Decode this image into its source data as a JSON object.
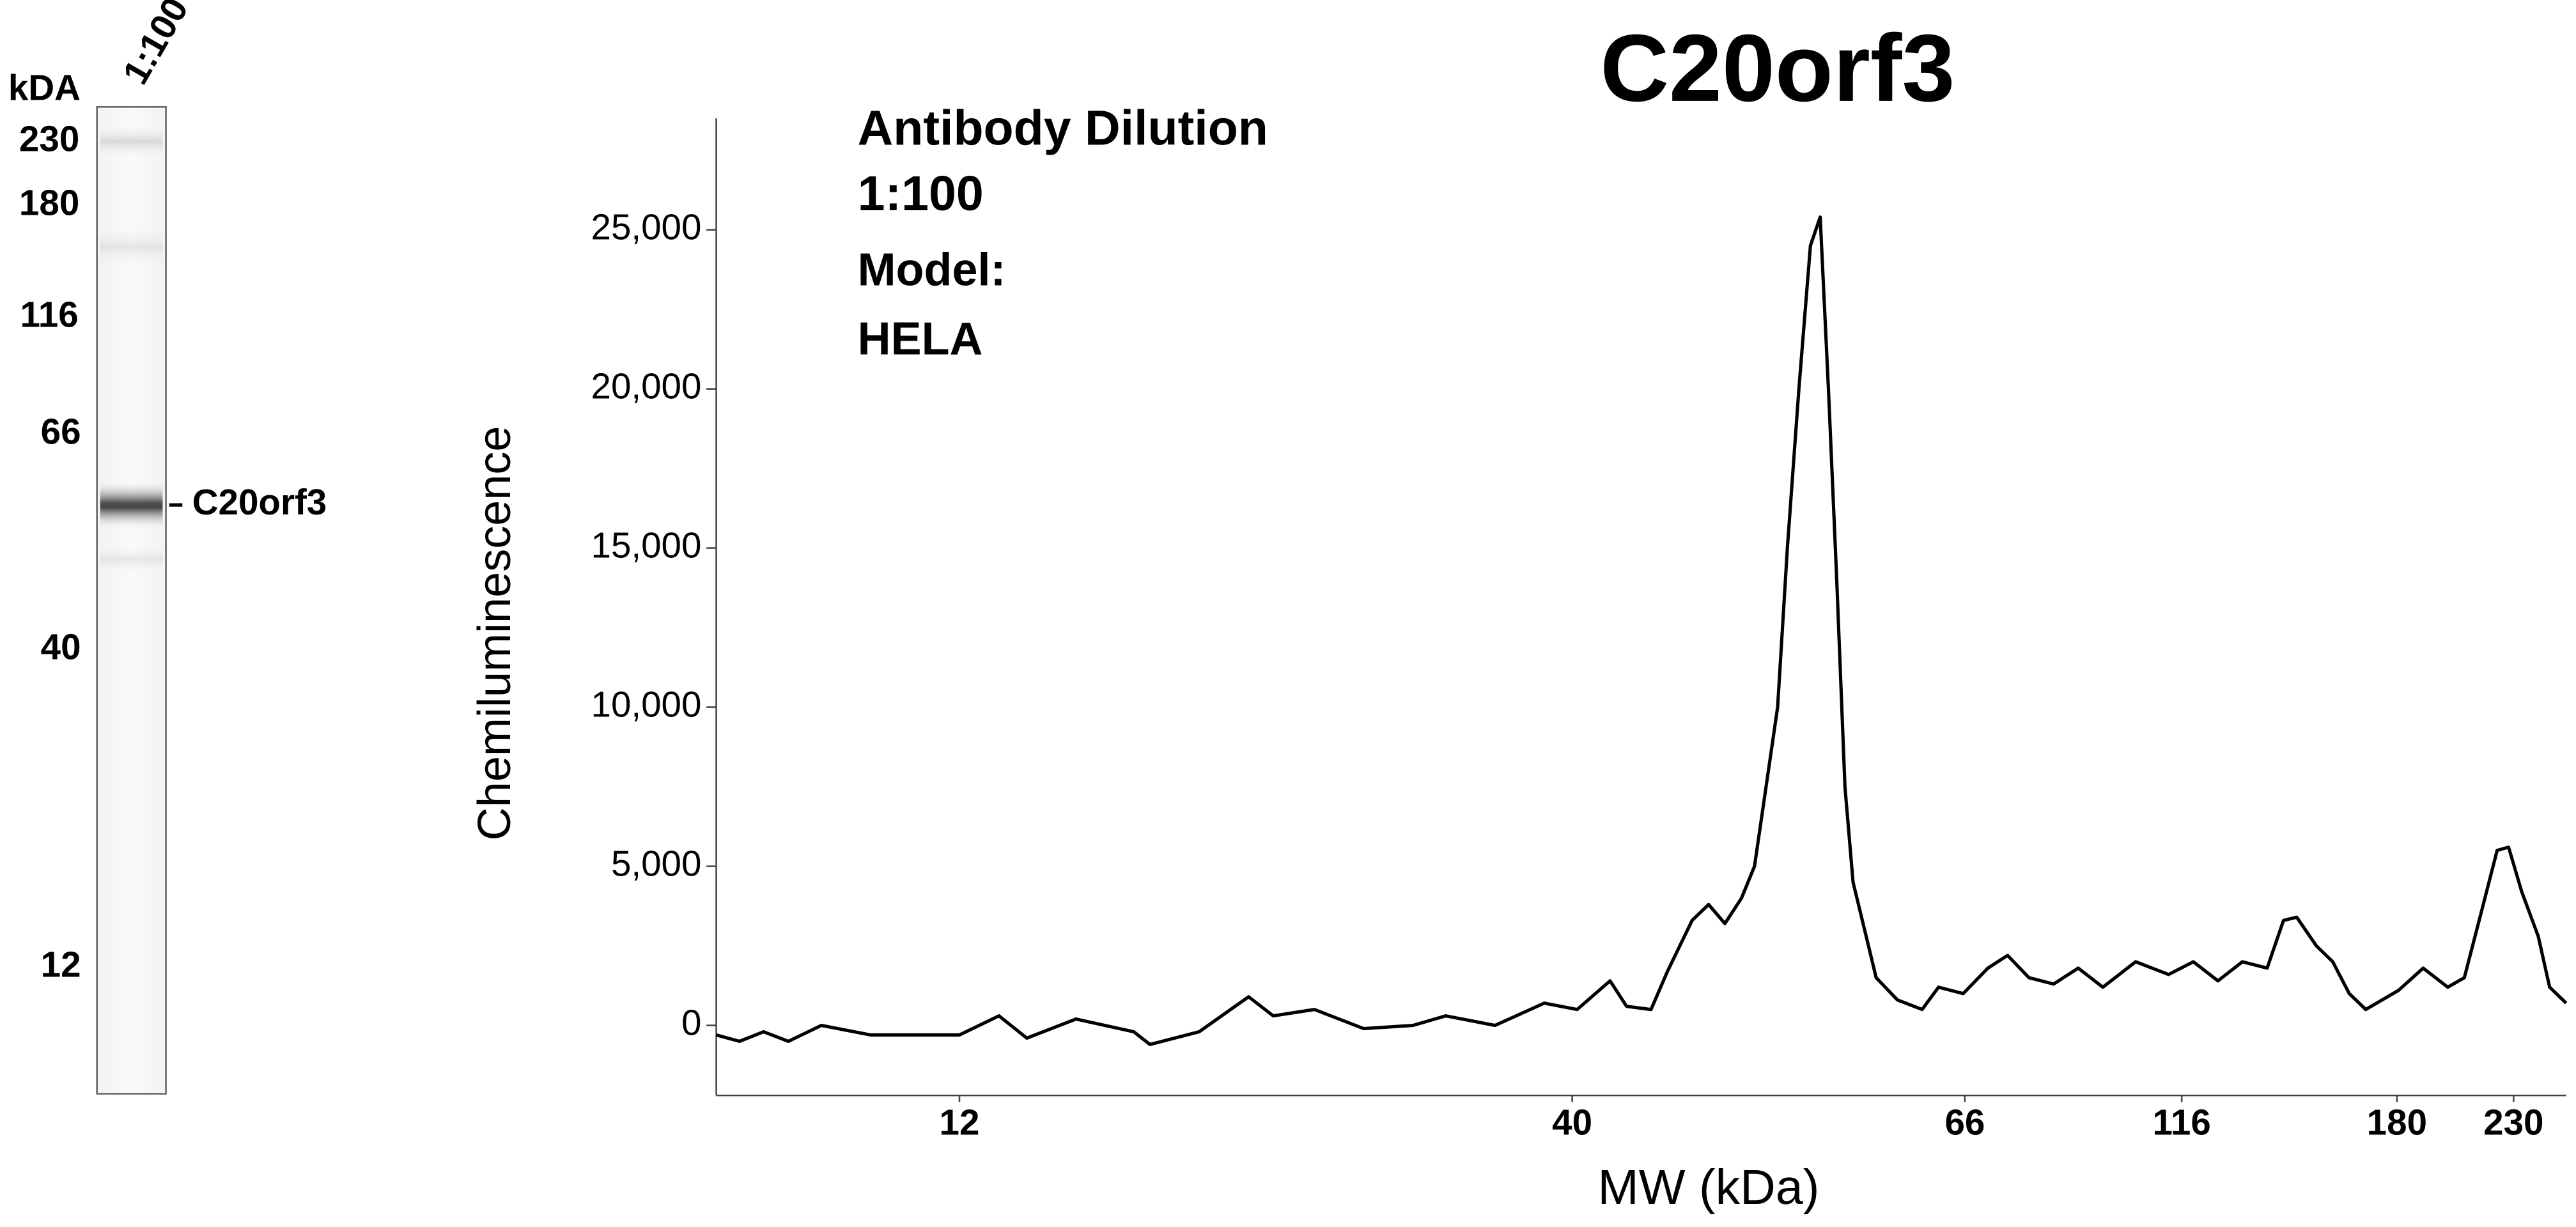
{
  "lane": {
    "header": "kDA",
    "label": "1:100",
    "markers": [
      "230",
      "180",
      "116",
      "66",
      "40",
      "12"
    ],
    "band_label": "C20orf3"
  },
  "chart_data": {
    "type": "line",
    "title": "C20orf3",
    "annotations": [
      "Antibody Dilution",
      "1:100",
      "Model:",
      "HELA"
    ],
    "x_label": "MW (kDa)",
    "y_label": "Chemiluminescence",
    "xscale": "log",
    "grid": false,
    "color": "#000000",
    "xlim": [
      7.4,
      257
    ],
    "xticks": [
      12,
      40,
      66,
      116,
      180,
      230
    ],
    "ylim": [
      -2200,
      28500
    ],
    "yticks": [
      0,
      {
        "value": 5000,
        "label": "5,000"
      },
      {
        "value": 10000,
        "label": "10,000"
      },
      {
        "value": 15000,
        "label": "15,000"
      },
      {
        "value": 20000,
        "label": "20,000"
      },
      {
        "value": 25000,
        "label": "25,000"
      }
    ],
    "x": [
      7.4,
      7.75,
      8.13,
      8.54,
      9.12,
      10.06,
      11.1,
      12,
      12.97,
      13.7,
      15.09,
      16.9,
      17.45,
      19.22,
      21.18,
      22.23,
      24.1,
      26.55,
      29.25,
      31.2,
      34.37,
      37.86,
      40.25,
      41.98,
      42.87,
      44.23,
      45.17,
      46.61,
      47.6,
      48.6,
      49.64,
      50.47,
      51.22,
      51.98,
      52.63,
      53.41,
      54.2,
      54.88,
      55.46,
      56.05,
      56.64,
      57.23,
      58.08,
      58.94,
      60.56,
      62.5,
      63.82,
      65.86,
      70.07,
      73.75,
      77.97,
      83.13,
      88.63,
      94.5,
      102.9,
      112.1,
      118.8,
      124.9,
      131.3,
      138.1,
      142.8,
      146.7,
      152.7,
      157.9,
      163.3,
      168.9,
      180.6,
      190.2,
      200.3,
      207.4,
      214.7,
      222.2,
      227.6,
      234,
      242.3,
      248.2,
      257
    ],
    "values": [
      -300,
      -500,
      -200,
      -500,
      0,
      -300,
      -300,
      -300,
      300,
      -400,
      200,
      -200,
      -600,
      -200,
      900,
      300,
      500,
      -100,
      0,
      300,
      0,
      700,
      500,
      1400,
      600,
      500,
      1700,
      3300,
      3800,
      3200,
      4000,
      5000,
      7500,
      10000,
      15000,
      20000,
      24500,
      25400,
      20000,
      14000,
      7500,
      4500,
      3000,
      1500,
      800,
      500,
      1200,
      1000,
      1800,
      2200,
      1500,
      1300,
      1800,
      1200,
      2000,
      1600,
      2000,
      1400,
      2000,
      1800,
      3300,
      3400,
      2500,
      2000,
      1000,
      500,
      1100,
      1800,
      1200,
      1500,
      3500,
      5500,
      5600,
      4200,
      2800,
      1200,
      700
    ]
  }
}
